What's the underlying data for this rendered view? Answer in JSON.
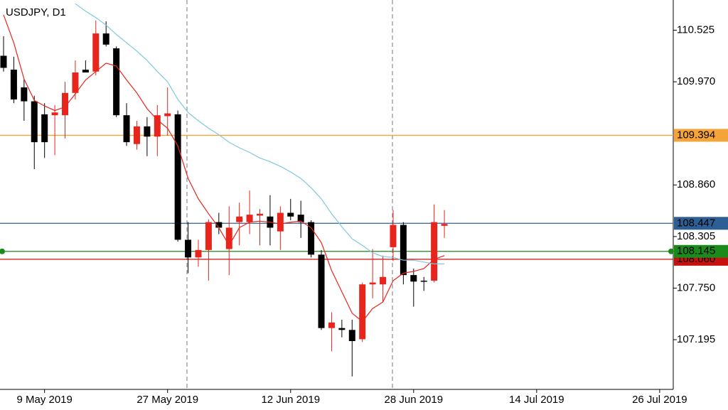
{
  "chart_data": {
    "type": "candlestick",
    "title": "USDJPY, D1",
    "categories": [
      null,
      null,
      null,
      null,
      "9 May 2019",
      null,
      null,
      null,
      null,
      null,
      null,
      null,
      null,
      null,
      null,
      null,
      "27 May 2019",
      null,
      null,
      null,
      null,
      null,
      null,
      null,
      null,
      null,
      null,
      null,
      "12 Jun 2019",
      null,
      null,
      null,
      null,
      null,
      null,
      null,
      null,
      null,
      null,
      null,
      "28 Jun 2019",
      null,
      null,
      null,
      null,
      null,
      null,
      null,
      null,
      null,
      null,
      null,
      "14 Jul 2019",
      null,
      null,
      null,
      null,
      null,
      null,
      null,
      null,
      null,
      null,
      null,
      "26 Jul 2019"
    ],
    "open": [
      110.25,
      110.1,
      109.91,
      109.76,
      109.62,
      109.61,
      109.61,
      109.85,
      110.1,
      110.08,
      110.49,
      110.33,
      109.61,
      109.3,
      109.49,
      109.38,
      109.6,
      109.62,
      108.27,
      108.08,
      108.16,
      108.46,
      108.17,
      108.46,
      108.46,
      108.53,
      108.52,
      108.36,
      108.56,
      108.54,
      108.46,
      108.11,
      107.32,
      107.32,
      107.3,
      107.2,
      107.79,
      107.79,
      108.19,
      108.43,
      107.89,
      107.83,
      107.83,
      108.42,
      null,
      null,
      null,
      null,
      null,
      null,
      null,
      null,
      null,
      null,
      null,
      null,
      null,
      null,
      null,
      null,
      null,
      null,
      null,
      null,
      null
    ],
    "high": [
      110.46,
      110.24,
      110.0,
      109.82,
      109.74,
      109.72,
      109.97,
      110.2,
      110.2,
      110.63,
      110.62,
      110.35,
      109.74,
      109.55,
      109.59,
      109.72,
      109.91,
      109.66,
      108.46,
      108.27,
      108.49,
      108.56,
      108.63,
      108.67,
      108.8,
      108.6,
      108.75,
      108.63,
      108.71,
      108.69,
      108.48,
      108.16,
      107.49,
      107.41,
      107.41,
      107.81,
      108.17,
      108.1,
      108.59,
      108.46,
      107.96,
      107.87,
      108.65,
      108.59,
      null,
      null,
      null,
      null,
      null,
      null,
      null,
      null,
      null,
      null,
      null,
      null,
      null,
      null,
      null,
      null,
      null,
      null,
      null,
      null,
      null
    ],
    "low": [
      110.08,
      109.74,
      109.55,
      109.03,
      109.15,
      109.18,
      109.36,
      109.78,
      110.07,
      110.04,
      110.35,
      109.59,
      109.28,
      109.24,
      109.17,
      109.17,
      109.39,
      108.25,
      107.91,
      107.98,
      107.83,
      108.33,
      107.89,
      108.21,
      108.33,
      108.21,
      108.21,
      108.16,
      108.48,
      108.29,
      108.08,
      107.3,
      107.07,
      107.22,
      106.8,
      107.17,
      107.64,
      107.6,
      108.04,
      107.79,
      107.55,
      107.72,
      107.81,
      108.29,
      null,
      null,
      null,
      null,
      null,
      null,
      null,
      null,
      null,
      null,
      null,
      null,
      null,
      null,
      null,
      null,
      null,
      null,
      null,
      null,
      null
    ],
    "close": [
      110.12,
      109.78,
      109.76,
      109.32,
      109.32,
      109.64,
      109.85,
      110.07,
      110.07,
      110.49,
      110.37,
      109.61,
      109.32,
      109.49,
      109.38,
      109.61,
      109.63,
      108.27,
      108.08,
      108.16,
      108.46,
      108.4,
      108.4,
      108.52,
      108.54,
      108.55,
      108.4,
      108.56,
      108.52,
      108.46,
      108.11,
      107.32,
      107.38,
      107.3,
      107.18,
      107.79,
      107.81,
      107.87,
      108.43,
      107.89,
      107.82,
      107.82,
      108.46,
      108.44,
      null,
      null,
      null,
      null,
      null,
      null,
      null,
      null,
      null,
      null,
      null,
      null,
      null,
      null,
      null,
      null,
      null,
      null,
      null,
      null,
      null
    ],
    "up_color": "#e8251c",
    "down_color": "#000000",
    "series": [
      {
        "color": "#e8251c",
        "values": [
          110.69,
          110.39,
          110.0,
          109.77,
          109.71,
          109.66,
          109.7,
          109.84,
          109.99,
          110.08,
          110.17,
          110.14,
          109.99,
          109.85,
          109.68,
          109.56,
          109.47,
          109.28,
          108.93,
          108.71,
          108.55,
          108.4,
          108.21,
          108.4,
          108.46,
          108.47,
          108.46,
          108.44,
          108.46,
          108.47,
          108.4,
          108.24,
          107.94,
          107.71,
          107.48,
          107.39,
          107.53,
          107.6,
          107.83,
          107.91,
          107.93,
          107.96,
          108.06,
          108.1,
          null,
          null,
          null,
          null,
          null,
          null,
          null,
          null,
          null,
          null,
          null,
          null,
          null,
          null,
          null,
          null,
          null,
          null,
          null,
          null,
          null
        ]
      },
      {
        "color": "#7fc8e0",
        "values": [
          null,
          null,
          null,
          null,
          null,
          null,
          null,
          110.81,
          110.73,
          110.66,
          110.58,
          110.48,
          110.39,
          110.3,
          110.2,
          110.08,
          109.97,
          109.78,
          109.64,
          109.55,
          109.47,
          109.4,
          109.32,
          109.26,
          109.21,
          109.15,
          109.11,
          109.06,
          109.0,
          108.93,
          108.83,
          108.71,
          108.55,
          108.41,
          108.28,
          108.21,
          108.13,
          108.09,
          108.08,
          108.05,
          108.05,
          108.03,
          108.01,
          108.01,
          null,
          null,
          null,
          null,
          null,
          null,
          null,
          null,
          null,
          null,
          null,
          null,
          null,
          null,
          null,
          null,
          null,
          null,
          null,
          null,
          null
        ]
      }
    ],
    "levels": [
      {
        "value": 109.394,
        "color": "#f5a43a"
      },
      {
        "value": 108.447,
        "color": "#2e5f94"
      },
      {
        "value": 108.06,
        "label": "108.060",
        "color": "#c8100f"
      },
      {
        "value": 108.145,
        "color": "#1a8a1a"
      }
    ],
    "ylim": [
      106.66,
      110.85
    ],
    "yticks": [
      110.525,
      {
        "value": 109.97,
        "label": "109.970"
      },
      {
        "value": 108.86,
        "label": "108.860"
      },
      108.305,
      {
        "value": 107.75,
        "label": "107.750"
      },
      107.195
    ]
  }
}
